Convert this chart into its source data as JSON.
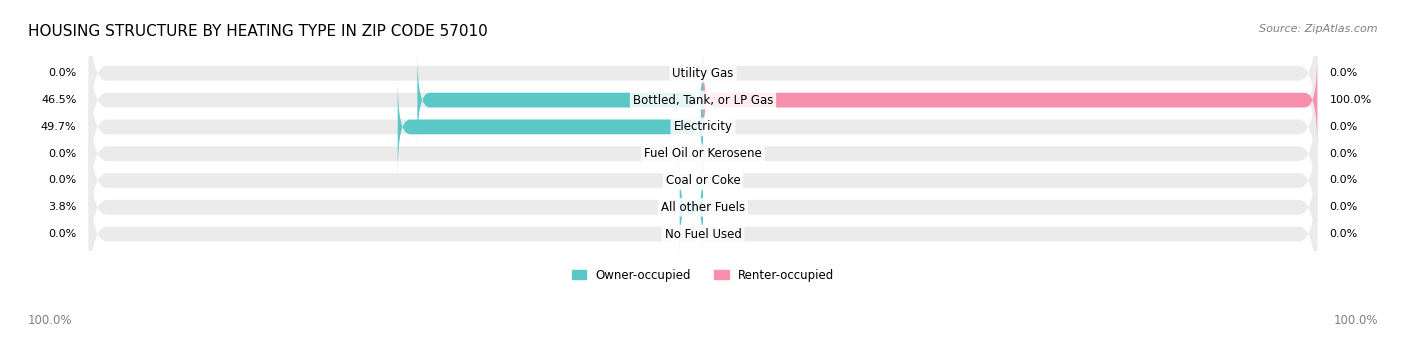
{
  "title": "HOUSING STRUCTURE BY HEATING TYPE IN ZIP CODE 57010",
  "source": "Source: ZipAtlas.com",
  "categories": [
    "Utility Gas",
    "Bottled, Tank, or LP Gas",
    "Electricity",
    "Fuel Oil or Kerosene",
    "Coal or Coke",
    "All other Fuels",
    "No Fuel Used"
  ],
  "owner_values": [
    0.0,
    46.5,
    49.7,
    0.0,
    0.0,
    3.8,
    0.0
  ],
  "renter_values": [
    0.0,
    100.0,
    0.0,
    0.0,
    0.0,
    0.0,
    0.0
  ],
  "owner_color": "#5bc8c8",
  "renter_color": "#f78fad",
  "bar_bg_color": "#ebebeb",
  "bar_height": 0.55,
  "max_value": 100.0,
  "title_fontsize": 11,
  "axis_label_fontsize": 8.5,
  "category_fontsize": 8.5,
  "value_fontsize": 8.0,
  "legend_fontsize": 8.5,
  "background_color": "#ffffff",
  "owner_label": "Owner-occupied",
  "renter_label": "Renter-occupied"
}
